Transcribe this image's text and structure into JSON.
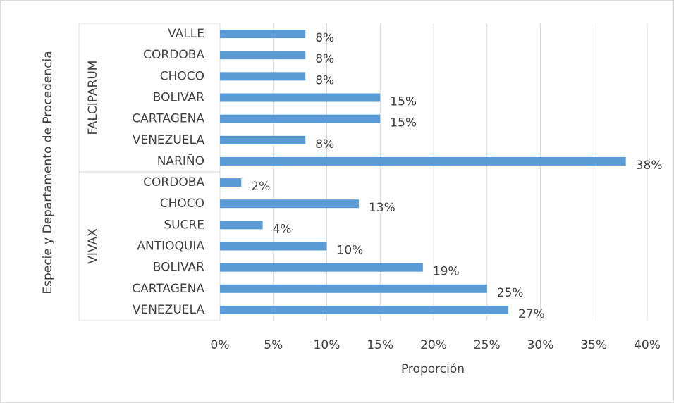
{
  "chart_data": {
    "type": "bar",
    "orientation": "horizontal",
    "y_label": "Especie y Departamento de Procedencia",
    "x_label": "Proporción",
    "color": "#5b9bd5",
    "groups": [
      {
        "name": "FALCIPARUM",
        "categories": [
          "VALLE",
          "CORDOBA",
          "CHOCO",
          "BOLIVAR",
          "CARTAGENA",
          "VENEZUELA",
          "NARIÑO"
        ],
        "values": [
          8,
          8,
          8,
          15,
          15,
          8,
          38
        ],
        "value_labels": [
          "8%",
          "8%",
          "8%",
          "15%",
          "15%",
          "8%",
          "38%"
        ]
      },
      {
        "name": "VIVAX",
        "categories": [
          "CORDOBA",
          "CHOCO",
          "SUCRE",
          "ANTIOQUIA",
          "BOLIVAR",
          "CARTAGENA",
          "VENEZUELA"
        ],
        "values": [
          2,
          13,
          4,
          10,
          19,
          25,
          27
        ],
        "value_labels": [
          "2%",
          "13%",
          "4%",
          "10%",
          "19%",
          "25%",
          "27%"
        ]
      }
    ],
    "xlim": [
      0,
      40
    ],
    "xticks": [
      {
        "value": 0,
        "label": "0%"
      },
      {
        "value": 5,
        "label": "5%"
      },
      {
        "value": 10,
        "label": "10%"
      },
      {
        "value": 15,
        "label": "15%"
      },
      {
        "value": 20,
        "label": "20%"
      },
      {
        "value": 25,
        "label": "25%"
      },
      {
        "value": 30,
        "label": "30%"
      },
      {
        "value": 35,
        "label": "35%"
      },
      {
        "value": 40,
        "label": "40%"
      }
    ],
    "grid": true
  }
}
